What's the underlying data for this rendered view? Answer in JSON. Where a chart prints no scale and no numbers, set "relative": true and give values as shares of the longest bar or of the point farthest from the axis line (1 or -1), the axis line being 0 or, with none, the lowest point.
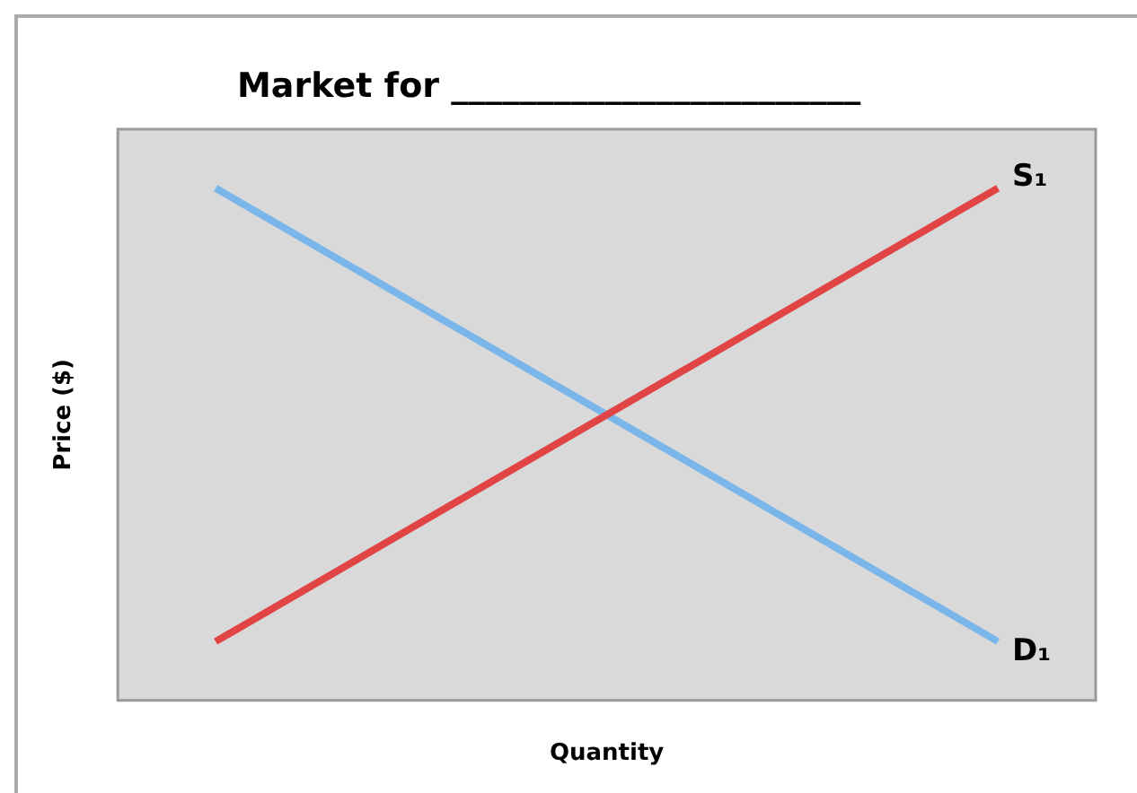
{
  "chart_data": {
    "type": "line",
    "title": "Market for ________________________",
    "xlabel": "Quantity",
    "ylabel": "Price ($)",
    "relative": true,
    "categories": [
      null,
      null
    ],
    "marker": "none",
    "grid": false,
    "legend": false,
    "series": [
      {
        "name": "S₁",
        "color": "#e04444",
        "values": [
          0,
          1
        ]
      },
      {
        "name": "D₁",
        "color": "#7ab6ea",
        "values": [
          1,
          0
        ]
      }
    ]
  }
}
